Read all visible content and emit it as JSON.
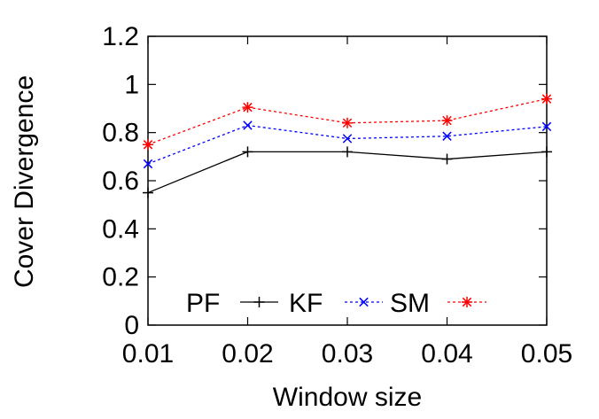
{
  "chart_data": {
    "type": "line",
    "title": "",
    "xlabel": "Window size",
    "ylabel": "Cover Divergence",
    "x": [
      0.01,
      0.02,
      0.03,
      0.04,
      0.05
    ],
    "x_tick_labels": [
      "0.01",
      "0.02",
      "0.03",
      "0.04",
      "0.05"
    ],
    "xlim": [
      0.01,
      0.05
    ],
    "ylim": [
      0,
      1.2
    ],
    "y_ticks": [
      0,
      0.2,
      0.4,
      0.6,
      0.8,
      1,
      1.2
    ],
    "y_tick_labels": [
      "0",
      "0.2",
      "0.4",
      "0.6",
      "0.8",
      "1",
      "1.2"
    ],
    "grid": false,
    "legend_position": "bottom-inside",
    "series": [
      {
        "name": "PF",
        "values": [
          0.55,
          0.72,
          0.72,
          0.69,
          0.72
        ],
        "color": "#000000",
        "marker": "plus",
        "dash": "solid"
      },
      {
        "name": "KF",
        "values": [
          0.67,
          0.83,
          0.775,
          0.785,
          0.825
        ],
        "color": "#0000ff",
        "marker": "x",
        "dash": "dotted"
      },
      {
        "name": "SM",
        "values": [
          0.75,
          0.905,
          0.84,
          0.85,
          0.94
        ],
        "color": "#ff0000",
        "marker": "star",
        "dash": "dotted"
      }
    ]
  }
}
